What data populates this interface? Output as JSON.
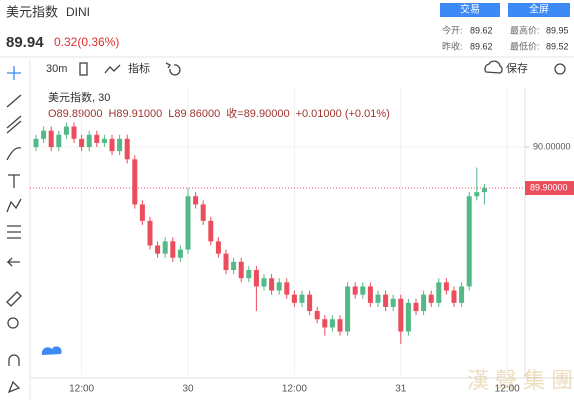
{
  "header": {
    "title": "美元指数",
    "symbol": "DINI",
    "price": 89.94,
    "change": "0.32(0.36%)",
    "buttons": [
      "交易",
      "全屏"
    ],
    "stats": [
      {
        "label": "今开:",
        "value": 89.62
      },
      {
        "label": "最高价:",
        "value": 89.95
      },
      {
        "label": "昨收:",
        "value": 89.62
      },
      {
        "label": "最低价:",
        "value": 89.52
      }
    ]
  },
  "toolbar": {
    "interval": "30m",
    "indicators": "指标",
    "save": "保存"
  },
  "watermark": "漢 聲 集 團",
  "chart_data": {
    "type": "candlestick",
    "legend_title": "美元指数, 30",
    "legend_ohlc": [
      "O89.89000",
      "H89.91000",
      "L89.86000",
      "收=89.90000",
      "+0.01000 (+0.01%)"
    ],
    "categories": [
      null,
      null,
      null,
      null,
      null,
      null,
      "12:00",
      null,
      null,
      null,
      null,
      null,
      null,
      null,
      null,
      null,
      null,
      null,
      null,
      null,
      "30",
      null,
      null,
      null,
      null,
      null,
      null,
      null,
      null,
      null,
      null,
      null,
      null,
      null,
      "12:00",
      null,
      null,
      null,
      null,
      null,
      null,
      null,
      null,
      null,
      null,
      null,
      null,
      null,
      "31",
      null,
      null,
      null,
      null,
      null,
      null,
      null,
      null,
      null,
      null,
      null,
      null,
      null,
      "12:00"
    ],
    "open": [
      90.0,
      90.02,
      90.04,
      90.0,
      90.03,
      90.05,
      90.02,
      90.0,
      90.03,
      90.01,
      90.02,
      89.99,
      90.02,
      89.97,
      89.86,
      89.82,
      89.76,
      89.74,
      89.77,
      89.73,
      89.75,
      89.88,
      89.86,
      89.82,
      89.77,
      89.74,
      89.7,
      89.72,
      89.68,
      89.7,
      89.66,
      89.68,
      89.65,
      89.67,
      89.64,
      89.62,
      89.64,
      89.6,
      89.58,
      89.56,
      89.58,
      89.55,
      89.66,
      89.64,
      89.66,
      89.62,
      89.64,
      89.61,
      89.63,
      89.55,
      89.62,
      89.6,
      89.64,
      89.62,
      89.67,
      89.65,
      89.62,
      89.66,
      89.88,
      89.89,
      null,
      null,
      null
    ],
    "high": [
      90.03,
      90.05,
      90.05,
      90.04,
      90.06,
      90.06,
      90.03,
      90.04,
      90.04,
      90.03,
      90.03,
      90.03,
      90.03,
      89.98,
      89.87,
      89.83,
      89.77,
      89.78,
      89.78,
      89.76,
      89.9,
      89.89,
      89.87,
      89.83,
      89.78,
      89.75,
      89.73,
      89.73,
      89.71,
      89.71,
      89.69,
      89.69,
      89.68,
      89.68,
      89.65,
      89.65,
      89.65,
      89.61,
      89.59,
      89.59,
      89.59,
      89.67,
      89.67,
      89.67,
      89.67,
      89.65,
      89.65,
      89.64,
      89.64,
      89.63,
      89.63,
      89.65,
      89.65,
      89.68,
      89.68,
      89.66,
      89.67,
      89.89,
      89.95,
      89.91,
      null,
      null,
      null
    ],
    "low": [
      89.99,
      90.01,
      89.99,
      89.99,
      90.02,
      90.01,
      89.99,
      89.99,
      90.0,
      90.0,
      89.98,
      89.98,
      89.96,
      89.85,
      89.81,
      89.75,
      89.73,
      89.73,
      89.72,
      89.72,
      89.74,
      89.85,
      89.81,
      89.76,
      89.73,
      89.69,
      89.69,
      89.67,
      89.67,
      89.6,
      89.65,
      89.64,
      89.64,
      89.63,
      89.61,
      89.61,
      89.59,
      89.57,
      89.54,
      89.55,
      89.54,
      89.54,
      89.63,
      89.63,
      89.61,
      89.61,
      89.6,
      89.6,
      89.52,
      89.54,
      89.59,
      89.59,
      89.61,
      89.61,
      89.64,
      89.61,
      89.61,
      89.65,
      89.87,
      89.86,
      null,
      null,
      null
    ],
    "close": [
      90.02,
      90.04,
      90.0,
      90.03,
      90.05,
      90.02,
      90.0,
      90.03,
      90.01,
      90.02,
      89.99,
      90.02,
      89.97,
      89.86,
      89.82,
      89.76,
      89.74,
      89.77,
      89.73,
      89.75,
      89.88,
      89.86,
      89.82,
      89.77,
      89.74,
      89.7,
      89.72,
      89.68,
      89.7,
      89.66,
      89.68,
      89.65,
      89.67,
      89.64,
      89.62,
      89.64,
      89.6,
      89.58,
      89.56,
      89.58,
      89.55,
      89.66,
      89.64,
      89.66,
      89.62,
      89.64,
      89.61,
      89.63,
      89.55,
      89.62,
      89.6,
      89.64,
      89.62,
      89.67,
      89.65,
      89.62,
      89.66,
      89.88,
      89.89,
      89.9,
      null,
      null,
      null
    ],
    "up_color": "#53b987",
    "down_color": "#eb4d5c",
    "ylim": [
      89.444,
      90.144
    ],
    "yticks": [
      {
        "value": 90,
        "label": "90.00000"
      }
    ],
    "last_price": {
      "value": 89.9,
      "label": "89.90000"
    },
    "grid": true
  }
}
